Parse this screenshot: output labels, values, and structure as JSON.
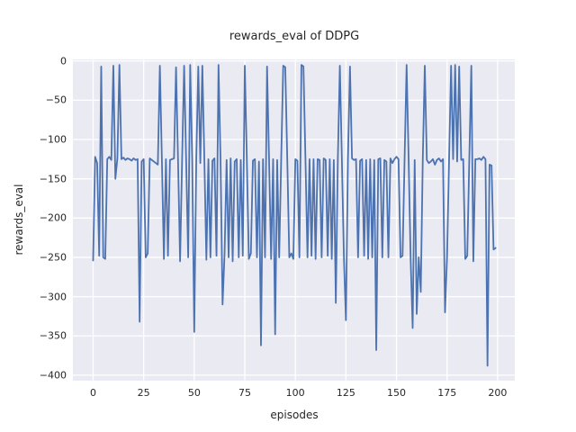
{
  "figure": {
    "background": "#ffffff",
    "plot_background": "#eaeaf2",
    "grid_color": "#ffffff",
    "text_color": "#262626"
  },
  "chart_data": {
    "type": "line",
    "title": "rewards_eval of DDPG",
    "xlabel": "episodes",
    "ylabel": "rewards_eval",
    "xticks": [
      0,
      25,
      50,
      75,
      100,
      125,
      150,
      175,
      200
    ],
    "yticks": [
      0,
      -50,
      -100,
      -150,
      -200,
      -250,
      -300,
      -350,
      -400
    ],
    "xlim": [
      -10,
      208.5
    ],
    "ylim": [
      -407,
      2
    ],
    "grid": true,
    "legend": false,
    "line_color": "#4c72b0",
    "series": [
      {
        "name": "rewards_eval",
        "color": "#4c72b0",
        "values": [
          -254,
          -122,
          -130,
          -248,
          -7,
          -250,
          -252,
          -125,
          -122,
          -126,
          -6,
          -150,
          -124,
          -5,
          -125,
          -123,
          -126,
          -124,
          -125,
          -127,
          -124,
          -126,
          -125,
          -332,
          -128,
          -125,
          -250,
          -245,
          -124,
          -126,
          -128,
          -130,
          -132,
          -6,
          -125,
          -252,
          -125,
          -248,
          -126,
          -125,
          -124,
          -8,
          -128,
          -255,
          -125,
          -6,
          -127,
          -250,
          -5,
          -126,
          -345,
          -125,
          -7,
          -130,
          -6,
          -125,
          -253,
          -125,
          -250,
          -127,
          -124,
          -248,
          -5,
          -125,
          -310,
          -245,
          -126,
          -250,
          -124,
          -255,
          -128,
          -125,
          -250,
          -126,
          -248,
          -6,
          -125,
          -252,
          -245,
          -127,
          -125,
          -250,
          -128,
          -362,
          -125,
          -250,
          -7,
          -126,
          -252,
          -125,
          -348,
          -126,
          -250,
          -124,
          -6,
          -8,
          -125,
          -250,
          -245,
          -252,
          -125,
          -127,
          -250,
          -5,
          -7,
          -126,
          -250,
          -125,
          -248,
          -125,
          -252,
          -125,
          -126,
          -250,
          -124,
          -126,
          -248,
          -125,
          -252,
          -126,
          -308,
          -125,
          -6,
          -126,
          -250,
          -330,
          -125,
          -7,
          -124,
          -126,
          -125,
          -250,
          -127,
          -125,
          -248,
          -126,
          -252,
          -125,
          -250,
          -126,
          -368,
          -125,
          -124,
          -250,
          -126,
          -128,
          -250,
          -124,
          -130,
          -125,
          -122,
          -125,
          -250,
          -248,
          -126,
          -5,
          -125,
          -252,
          -340,
          -126,
          -322,
          -250,
          -294,
          -125,
          -6,
          -126,
          -130,
          -128,
          -125,
          -132,
          -126,
          -124,
          -128,
          -125,
          -320,
          -250,
          -126,
          -6,
          -125,
          -5,
          -128,
          -7,
          -126,
          -125,
          -252,
          -248,
          -125,
          -6,
          -255,
          -125,
          -125,
          -124,
          -126,
          -122,
          -125,
          -388,
          -132,
          -133,
          -240,
          -238
        ]
      }
    ]
  }
}
